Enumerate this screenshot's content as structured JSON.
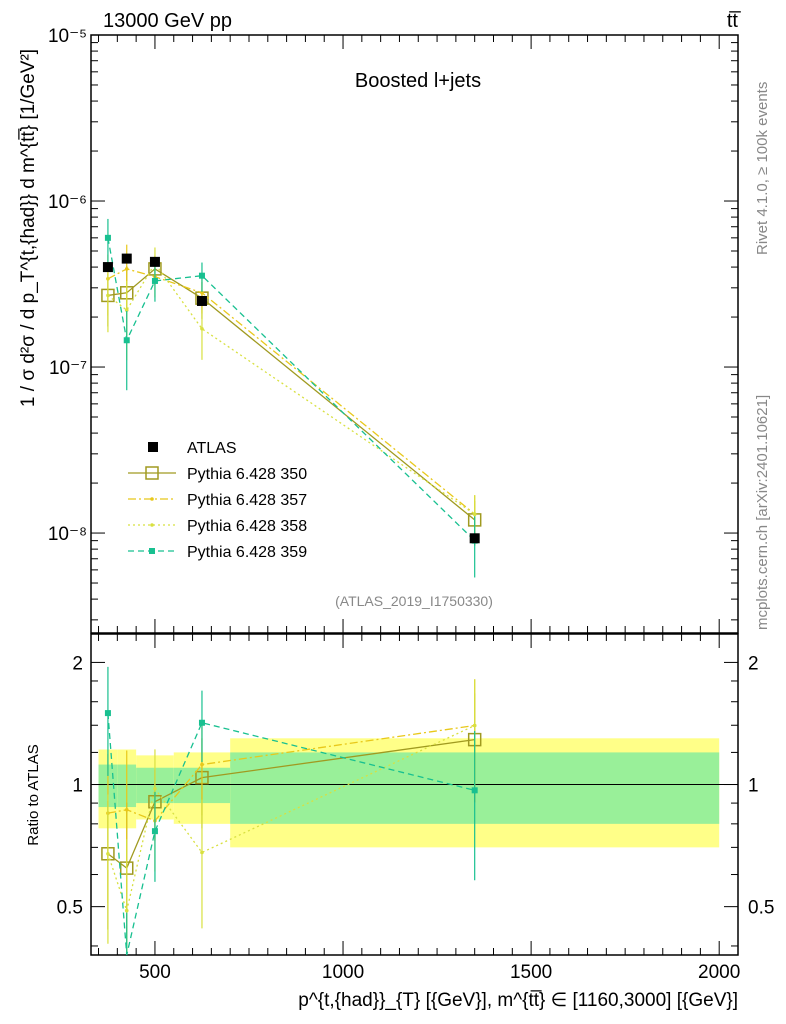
{
  "header": {
    "left_title": "13000 GeV pp",
    "right_title": "tt̅",
    "plot_label": "Boosted l+jets",
    "analysis_id": "(ATLAS_2019_I1750330)",
    "side_text_top": "Rivet 4.1.0, ≥ 100k events",
    "side_text_bottom": "mcplots.cern.ch [arXiv:2401.10621]"
  },
  "axes": {
    "y_main_label": "1 / σ d²σ / d p_T^{t,{had}} d m^{tt̅} [1/GeV²]",
    "y_ratio_label": "Ratio to ATLAS",
    "x_label": "p^{t,{had}}_{T} [{GeV}], m^{tt̅} ∈ [1160,3000] [{GeV}]",
    "main_ticks": [
      "10⁻⁸",
      "10⁻⁷",
      "10⁻⁶",
      "10⁻⁵"
    ],
    "ratio_ticks": [
      "0.5",
      "1",
      "2"
    ],
    "x_ticks": [
      "500",
      "1000",
      "1500",
      "2000"
    ]
  },
  "legend": [
    {
      "label": "ATLAS",
      "color": "#000000",
      "style": "data"
    },
    {
      "label": "Pythia 6.428 350",
      "color": "#a09a20",
      "style": "solid"
    },
    {
      "label": "Pythia 6.428 357",
      "color": "#e8c81a",
      "style": "dashdot"
    },
    {
      "label": "Pythia 6.428 358",
      "color": "#d8e040",
      "style": "dotted"
    },
    {
      "label": "Pythia 6.428 359",
      "color": "#18c090",
      "style": "dashed"
    }
  ],
  "chart_data": {
    "type": "line",
    "x_scale": "linear",
    "y_scale": "log",
    "xlim": [
      330,
      2050
    ],
    "ylim": [
      2.5e-09,
      1e-05
    ],
    "ratio_ylim": [
      0.38,
      2.35
    ],
    "bins": [
      [
        350,
        400
      ],
      [
        400,
        450
      ],
      [
        450,
        550
      ],
      [
        550,
        700
      ],
      [
        700,
        2000
      ]
    ],
    "x": [
      375,
      425,
      500,
      625,
      1350
    ],
    "data": {
      "name": "ATLAS",
      "values": [
        4e-07,
        4.5e-07,
        4.3e-07,
        2.5e-07,
        9.3e-09
      ],
      "band_stat_rel": [
        0.12,
        0.12,
        0.1,
        0.1,
        0.2
      ],
      "band_total_rel": [
        0.22,
        0.22,
        0.18,
        0.2,
        0.3
      ]
    },
    "series": [
      {
        "name": "Pythia 6.428 350",
        "color": "#a09a20",
        "dash": "",
        "marker": "open-square",
        "values": [
          2.7e-07,
          2.8e-07,
          3.9e-07,
          2.6e-07,
          1.2e-08
        ],
        "err_rel": [
          0.35,
          0.45,
          0.2,
          0.25,
          0.3
        ]
      },
      {
        "name": "Pythia 6.428 357",
        "color": "#e8c81a",
        "dash": "8,3,2,3",
        "marker": "dot",
        "values": [
          3.4e-07,
          3.9e-07,
          3.5e-07,
          2.8e-07,
          1.3e-08
        ],
        "err_rel": [
          0.4,
          0.4,
          0.25,
          0.25,
          0.3
        ]
      },
      {
        "name": "Pythia 6.428 358",
        "color": "#d8e040",
        "dash": "2,3",
        "marker": "dot",
        "values": [
          2.7e-07,
          2.2e-07,
          4.2e-07,
          1.7e-07,
          1.3e-08
        ],
        "err_rel": [
          0.4,
          0.5,
          0.25,
          0.35,
          0.3
        ]
      },
      {
        "name": "Pythia 6.428 359",
        "color": "#18c090",
        "dash": "6,4",
        "marker": "filled-square",
        "values": [
          6e-07,
          1.45e-07,
          3.3e-07,
          3.55e-07,
          9e-09
        ],
        "err_rel": [
          0.3,
          0.5,
          0.25,
          0.2,
          0.4
        ]
      }
    ]
  }
}
